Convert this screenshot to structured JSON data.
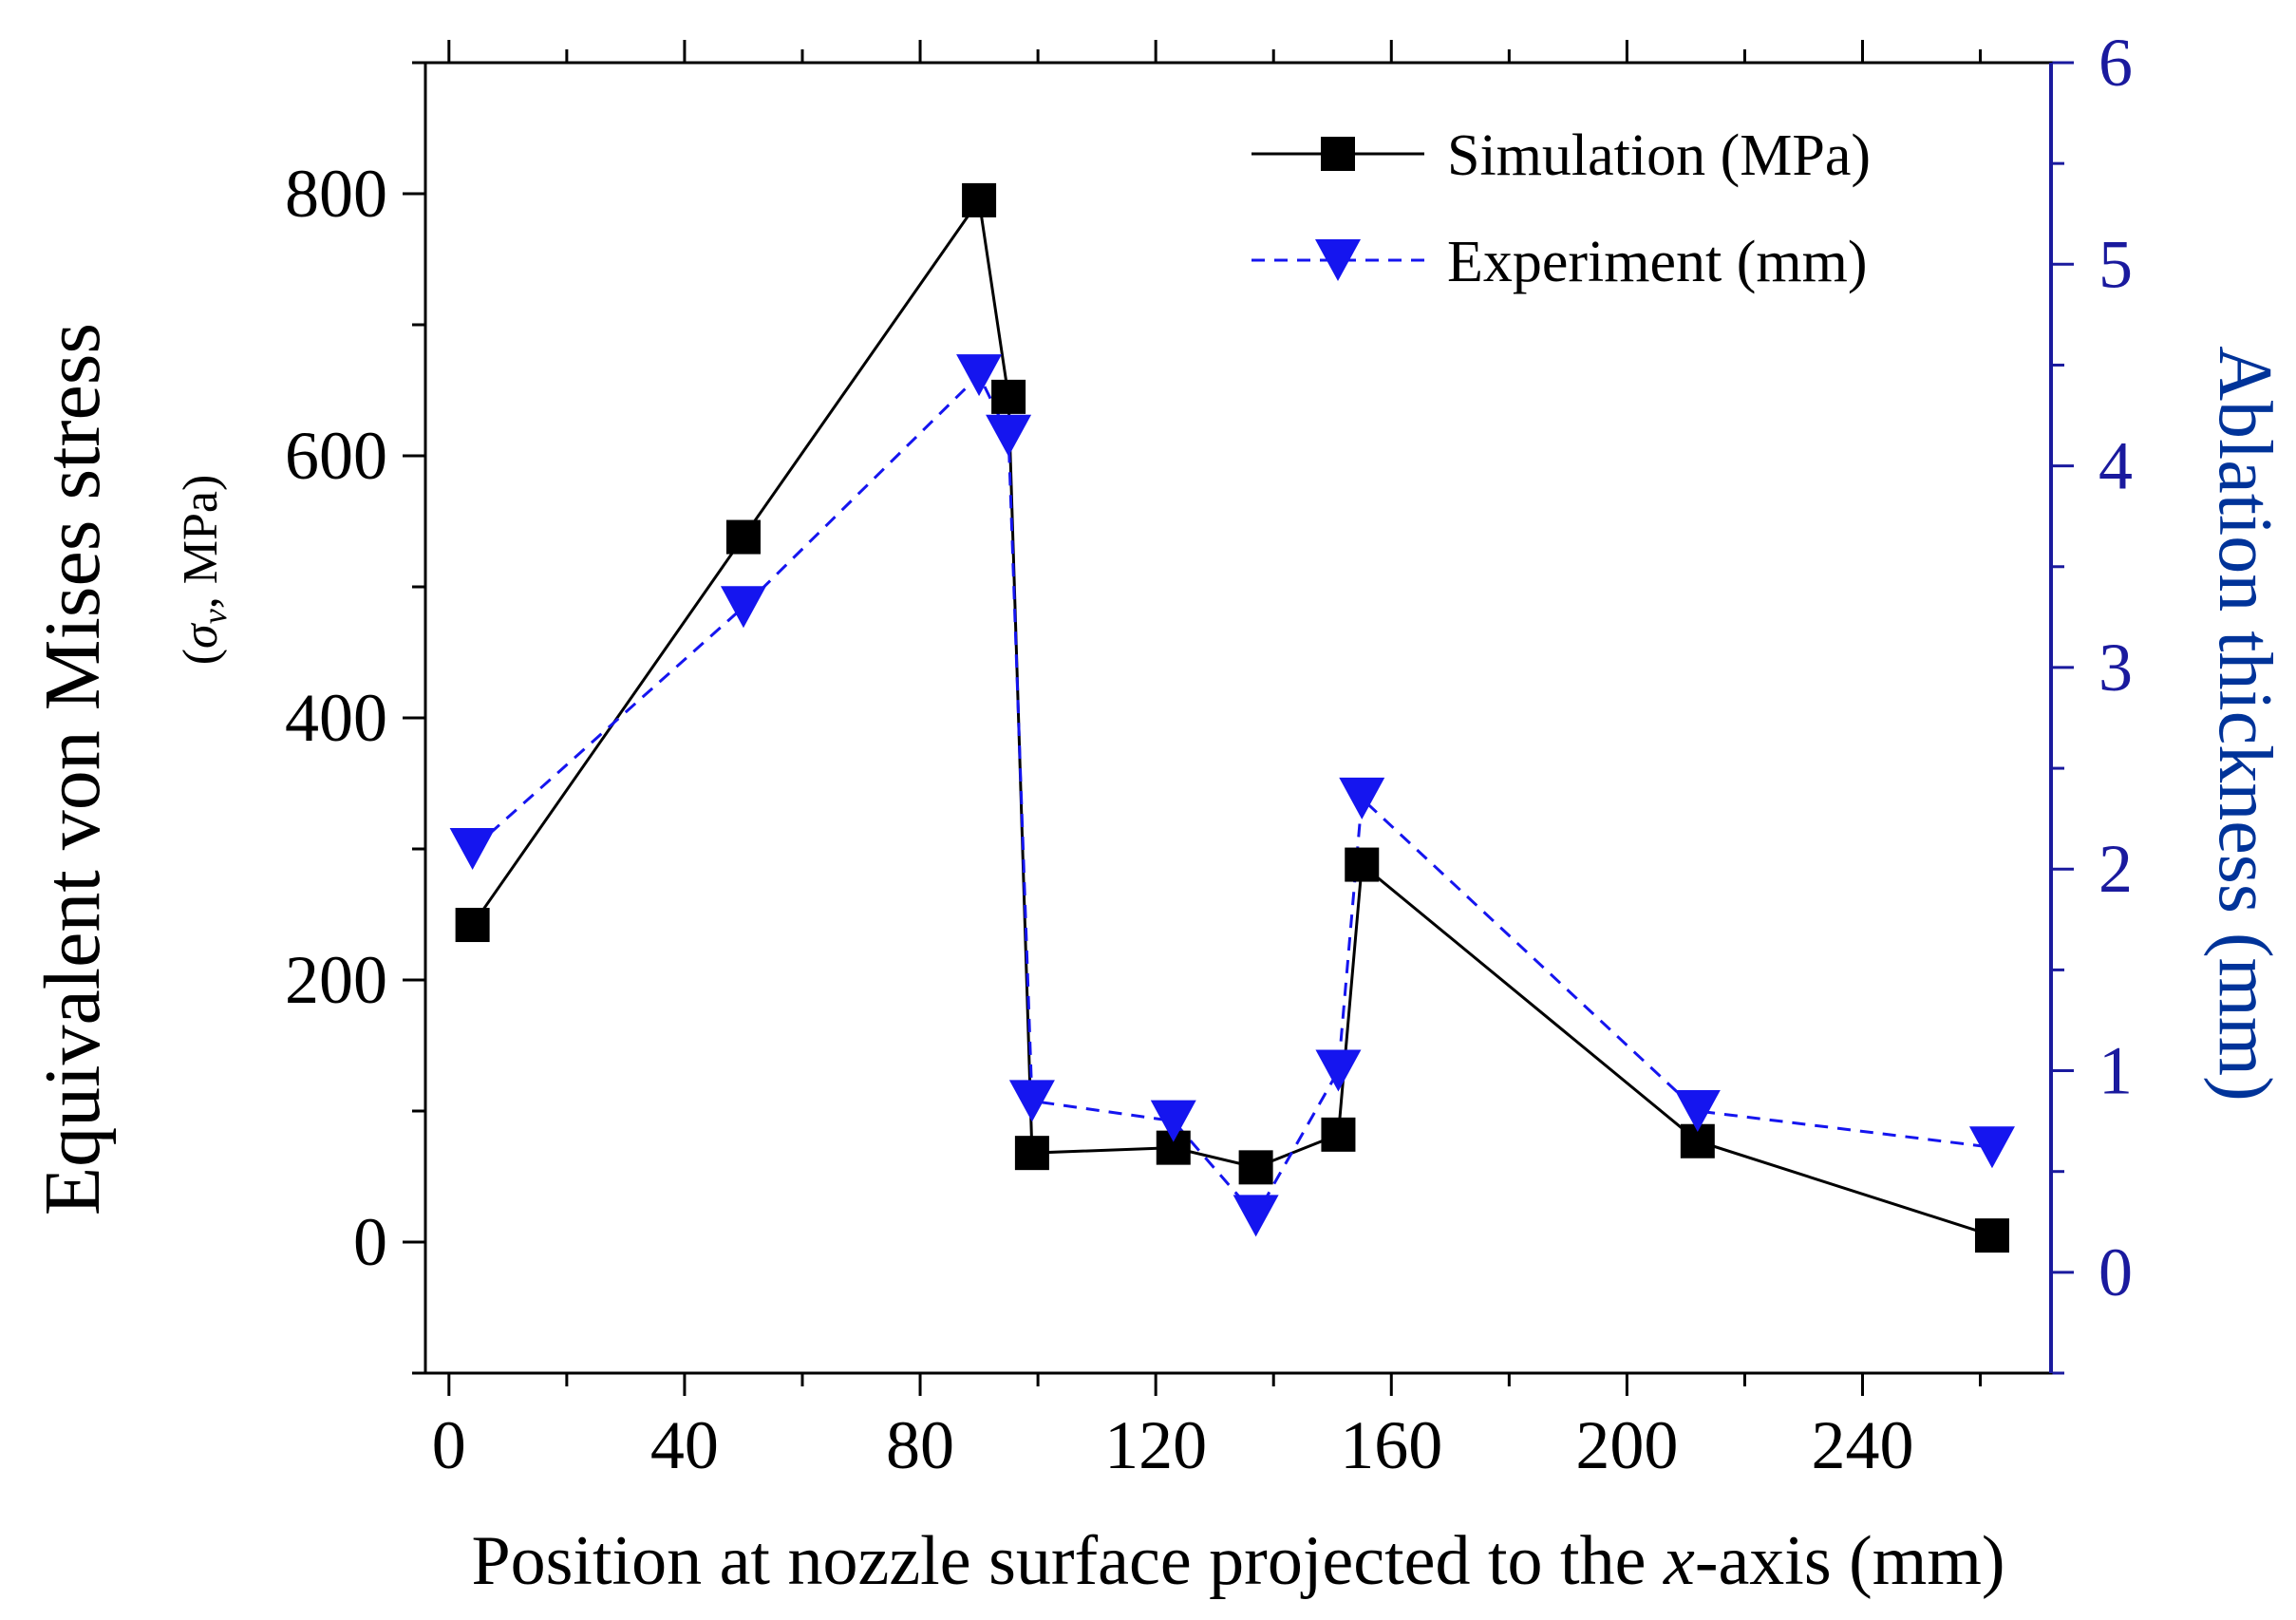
{
  "chart_data": {
    "type": "line",
    "title": "",
    "xlabel": {
      "prefix": "Position at nozzle surface projected to the ",
      "italic": "x",
      "suffix": "-axis (mm)"
    },
    "ylabel_left": "Equivalent von Mises stress",
    "ylabel_left_sub": {
      "open": "(",
      "symbol": "σ",
      "subscript": "v",
      "rest": ", MPa)"
    },
    "ylabel_right": "Ablation thickness (mm)",
    "xlim": [
      -4,
      272
    ],
    "ylim_left": [
      -100,
      900
    ],
    "ylim_right": [
      -0.5,
      6
    ],
    "x_ticks": [
      "0",
      "40",
      "80",
      "120",
      "160",
      "200",
      "240"
    ],
    "y_left_ticks": [
      "0",
      "200",
      "400",
      "600",
      "800"
    ],
    "y_right_ticks": [
      "0",
      "1",
      "2",
      "3",
      "4",
      "5",
      "6"
    ],
    "legend_position": "top-right",
    "series": [
      {
        "name": "Simulation (MPa)",
        "axis": "left",
        "color": "#000000",
        "marker": "square",
        "line": "solid",
        "x": [
          4,
          50,
          90,
          95,
          99,
          123,
          137,
          151,
          155,
          212,
          262
        ],
        "y": [
          242,
          538,
          795,
          645,
          68,
          72,
          57,
          82,
          288,
          77,
          5
        ]
      },
      {
        "name": "Experiment (mm)",
        "axis": "right",
        "color": "#1515ef",
        "marker": "triangle-down",
        "line": "dashed",
        "x": [
          4,
          50,
          90,
          95,
          99,
          123,
          137,
          151,
          155,
          212,
          262
        ],
        "y": [
          2.1,
          3.3,
          4.45,
          4.15,
          0.85,
          0.75,
          0.28,
          1.0,
          2.35,
          0.8,
          0.62
        ]
      }
    ],
    "colors": {
      "axis": "#000000",
      "right_axis": "#1a1a9e",
      "right_label": "#003399"
    }
  }
}
